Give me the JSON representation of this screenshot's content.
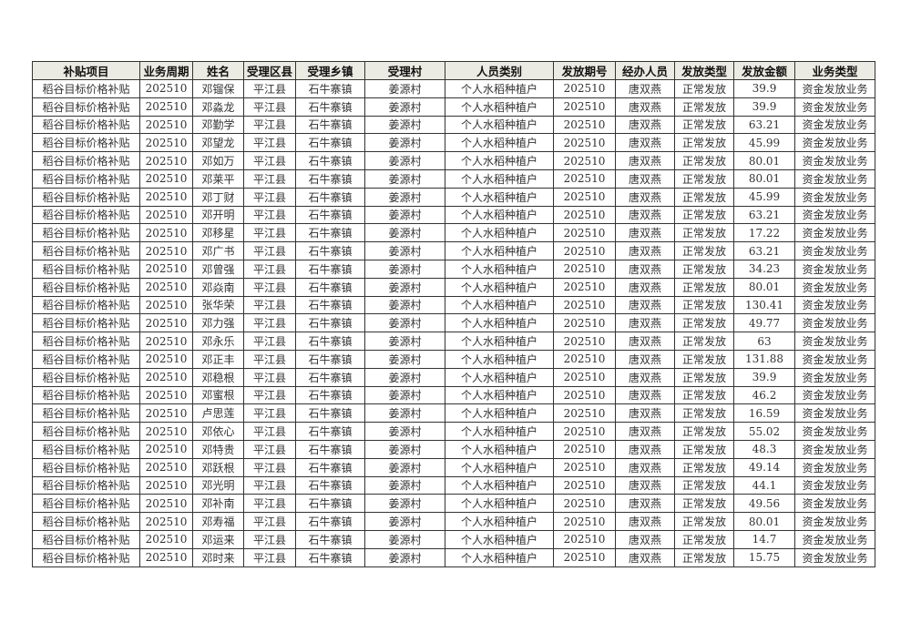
{
  "columns": [
    "补贴项目",
    "业务周期",
    "姓名",
    "受理区县",
    "受理乡镇",
    "受理村",
    "人员类别",
    "发放期号",
    "经办人员",
    "发放类型",
    "发放金额",
    "业务类型"
  ],
  "rows": [
    [
      "稻谷目标价格补贴",
      "202510",
      "邓镏保",
      "平江县",
      "石牛寨镇",
      "姜源村",
      "个人水稻种植户",
      "202510",
      "唐双燕",
      "正常发放",
      "39.9",
      "资金发放业务"
    ],
    [
      "稻谷目标价格补贴",
      "202510",
      "邓淼龙",
      "平江县",
      "石牛寨镇",
      "姜源村",
      "个人水稻种植户",
      "202510",
      "唐双燕",
      "正常发放",
      "39.9",
      "资金发放业务"
    ],
    [
      "稻谷目标价格补贴",
      "202510",
      "邓勤学",
      "平江县",
      "石牛寨镇",
      "姜源村",
      "个人水稻种植户",
      "202510",
      "唐双燕",
      "正常发放",
      "63.21",
      "资金发放业务"
    ],
    [
      "稻谷目标价格补贴",
      "202510",
      "邓望龙",
      "平江县",
      "石牛寨镇",
      "姜源村",
      "个人水稻种植户",
      "202510",
      "唐双燕",
      "正常发放",
      "45.99",
      "资金发放业务"
    ],
    [
      "稻谷目标价格补贴",
      "202510",
      "邓如万",
      "平江县",
      "石牛寨镇",
      "姜源村",
      "个人水稻种植户",
      "202510",
      "唐双燕",
      "正常发放",
      "80.01",
      "资金发放业务"
    ],
    [
      "稻谷目标价格补贴",
      "202510",
      "邓莱平",
      "平江县",
      "石牛寨镇",
      "姜源村",
      "个人水稻种植户",
      "202510",
      "唐双燕",
      "正常发放",
      "80.01",
      "资金发放业务"
    ],
    [
      "稻谷目标价格补贴",
      "202510",
      "邓丁财",
      "平江县",
      "石牛寨镇",
      "姜源村",
      "个人水稻种植户",
      "202510",
      "唐双燕",
      "正常发放",
      "45.99",
      "资金发放业务"
    ],
    [
      "稻谷目标价格补贴",
      "202510",
      "邓开明",
      "平江县",
      "石牛寨镇",
      "姜源村",
      "个人水稻种植户",
      "202510",
      "唐双燕",
      "正常发放",
      "63.21",
      "资金发放业务"
    ],
    [
      "稻谷目标价格补贴",
      "202510",
      "邓移星",
      "平江县",
      "石牛寨镇",
      "姜源村",
      "个人水稻种植户",
      "202510",
      "唐双燕",
      "正常发放",
      "17.22",
      "资金发放业务"
    ],
    [
      "稻谷目标价格补贴",
      "202510",
      "邓广书",
      "平江县",
      "石牛寨镇",
      "姜源村",
      "个人水稻种植户",
      "202510",
      "唐双燕",
      "正常发放",
      "63.21",
      "资金发放业务"
    ],
    [
      "稻谷目标价格补贴",
      "202510",
      "邓曾强",
      "平江县",
      "石牛寨镇",
      "姜源村",
      "个人水稻种植户",
      "202510",
      "唐双燕",
      "正常发放",
      "34.23",
      "资金发放业务"
    ],
    [
      "稻谷目标价格补贴",
      "202510",
      "邓焱南",
      "平江县",
      "石牛寨镇",
      "姜源村",
      "个人水稻种植户",
      "202510",
      "唐双燕",
      "正常发放",
      "80.01",
      "资金发放业务"
    ],
    [
      "稻谷目标价格补贴",
      "202510",
      "张华荣",
      "平江县",
      "石牛寨镇",
      "姜源村",
      "个人水稻种植户",
      "202510",
      "唐双燕",
      "正常发放",
      "130.41",
      "资金发放业务"
    ],
    [
      "稻谷目标价格补贴",
      "202510",
      "邓力强",
      "平江县",
      "石牛寨镇",
      "姜源村",
      "个人水稻种植户",
      "202510",
      "唐双燕",
      "正常发放",
      "49.77",
      "资金发放业务"
    ],
    [
      "稻谷目标价格补贴",
      "202510",
      "邓永乐",
      "平江县",
      "石牛寨镇",
      "姜源村",
      "个人水稻种植户",
      "202510",
      "唐双燕",
      "正常发放",
      "63",
      "资金发放业务"
    ],
    [
      "稻谷目标价格补贴",
      "202510",
      "邓正丰",
      "平江县",
      "石牛寨镇",
      "姜源村",
      "个人水稻种植户",
      "202510",
      "唐双燕",
      "正常发放",
      "131.88",
      "资金发放业务"
    ],
    [
      "稻谷目标价格补贴",
      "202510",
      "邓稳根",
      "平江县",
      "石牛寨镇",
      "姜源村",
      "个人水稻种植户",
      "202510",
      "唐双燕",
      "正常发放",
      "39.9",
      "资金发放业务"
    ],
    [
      "稻谷目标价格补贴",
      "202510",
      "邓蜜根",
      "平江县",
      "石牛寨镇",
      "姜源村",
      "个人水稻种植户",
      "202510",
      "唐双燕",
      "正常发放",
      "46.2",
      "资金发放业务"
    ],
    [
      "稻谷目标价格补贴",
      "202510",
      "卢思莲",
      "平江县",
      "石牛寨镇",
      "姜源村",
      "个人水稻种植户",
      "202510",
      "唐双燕",
      "正常发放",
      "16.59",
      "资金发放业务"
    ],
    [
      "稻谷目标价格补贴",
      "202510",
      "邓依心",
      "平江县",
      "石牛寨镇",
      "姜源村",
      "个人水稻种植户",
      "202510",
      "唐双燕",
      "正常发放",
      "55.02",
      "资金发放业务"
    ],
    [
      "稻谷目标价格补贴",
      "202510",
      "邓特贵",
      "平江县",
      "石牛寨镇",
      "姜源村",
      "个人水稻种植户",
      "202510",
      "唐双燕",
      "正常发放",
      "48.3",
      "资金发放业务"
    ],
    [
      "稻谷目标价格补贴",
      "202510",
      "邓跃根",
      "平江县",
      "石牛寨镇",
      "姜源村",
      "个人水稻种植户",
      "202510",
      "唐双燕",
      "正常发放",
      "49.14",
      "资金发放业务"
    ],
    [
      "稻谷目标价格补贴",
      "202510",
      "邓光明",
      "平江县",
      "石牛寨镇",
      "姜源村",
      "个人水稻种植户",
      "202510",
      "唐双燕",
      "正常发放",
      "44.1",
      "资金发放业务"
    ],
    [
      "稻谷目标价格补贴",
      "202510",
      "邓补南",
      "平江县",
      "石牛寨镇",
      "姜源村",
      "个人水稻种植户",
      "202510",
      "唐双燕",
      "正常发放",
      "49.56",
      "资金发放业务"
    ],
    [
      "稻谷目标价格补贴",
      "202510",
      "邓寿福",
      "平江县",
      "石牛寨镇",
      "姜源村",
      "个人水稻种植户",
      "202510",
      "唐双燕",
      "正常发放",
      "80.01",
      "资金发放业务"
    ],
    [
      "稻谷目标价格补贴",
      "202510",
      "邓运来",
      "平江县",
      "石牛寨镇",
      "姜源村",
      "个人水稻种植户",
      "202510",
      "唐双燕",
      "正常发放",
      "14.7",
      "资金发放业务"
    ],
    [
      "稻谷目标价格补贴",
      "202510",
      "邓时来",
      "平江县",
      "石牛寨镇",
      "姜源村",
      "个人水稻种植户",
      "202510",
      "唐双燕",
      "正常发放",
      "15.75",
      "资金发放业务"
    ]
  ]
}
